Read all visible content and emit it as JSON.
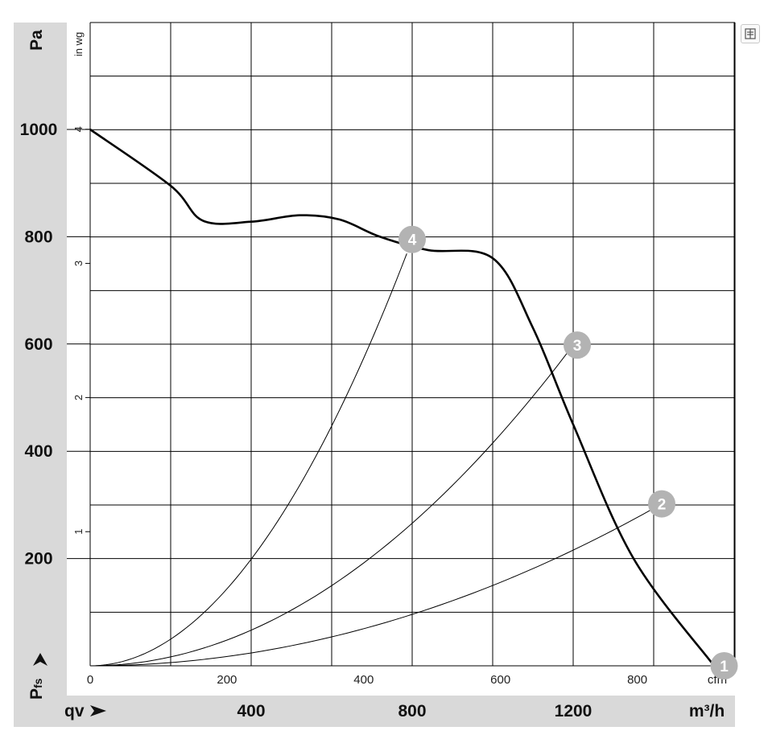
{
  "chart_data": {
    "type": "line",
    "y_axis_left": {
      "label": "Pa",
      "ticks": [
        "1000",
        "800",
        "600",
        "400",
        "200"
      ],
      "range": [
        0,
        1000
      ]
    },
    "y_axis_right_inner": {
      "label": "in wg",
      "ticks": [
        "4",
        "3",
        "2",
        "1"
      ]
    },
    "x_axis_top": {
      "unit": "cfm",
      "ticks": [
        "0",
        "200",
        "400",
        "600",
        "800"
      ],
      "range": [
        0,
        940
      ]
    },
    "x_axis_bottom": {
      "label": "qv",
      "unit": "m³/h",
      "ticks": [
        "400",
        "800",
        "1200"
      ]
    },
    "y_marker_label": "P",
    "y_marker_sub": "fs",
    "grid": true,
    "fan_curve": {
      "points_m3h": [
        [
          0,
          1000
        ],
        [
          200,
          895
        ],
        [
          280,
          830
        ],
        [
          400,
          828
        ],
        [
          520,
          840
        ],
        [
          620,
          832
        ],
        [
          720,
          800
        ],
        [
          840,
          775
        ],
        [
          1000,
          760
        ],
        [
          1100,
          630
        ],
        [
          1200,
          450
        ],
        [
          1350,
          200
        ],
        [
          1550,
          0
        ]
      ]
    },
    "system_curves": [
      {
        "id": "4",
        "flow_m3h": 800,
        "pressure_pa": 795
      },
      {
        "id": "3",
        "flow_m3h": 1200,
        "pressure_pa": 598
      },
      {
        "id": "2",
        "flow_m3h": 1420,
        "pressure_pa": 302
      }
    ],
    "operating_points": [
      {
        "label": "1",
        "flow_m3h": 1575,
        "pressure_pa": 0
      },
      {
        "label": "2",
        "flow_m3h": 1420,
        "pressure_pa": 302
      },
      {
        "label": "3",
        "flow_m3h": 1210,
        "pressure_pa": 598
      },
      {
        "label": "4",
        "flow_m3h": 800,
        "pressure_pa": 795
      }
    ]
  },
  "icons": {
    "export": "export-icon"
  }
}
